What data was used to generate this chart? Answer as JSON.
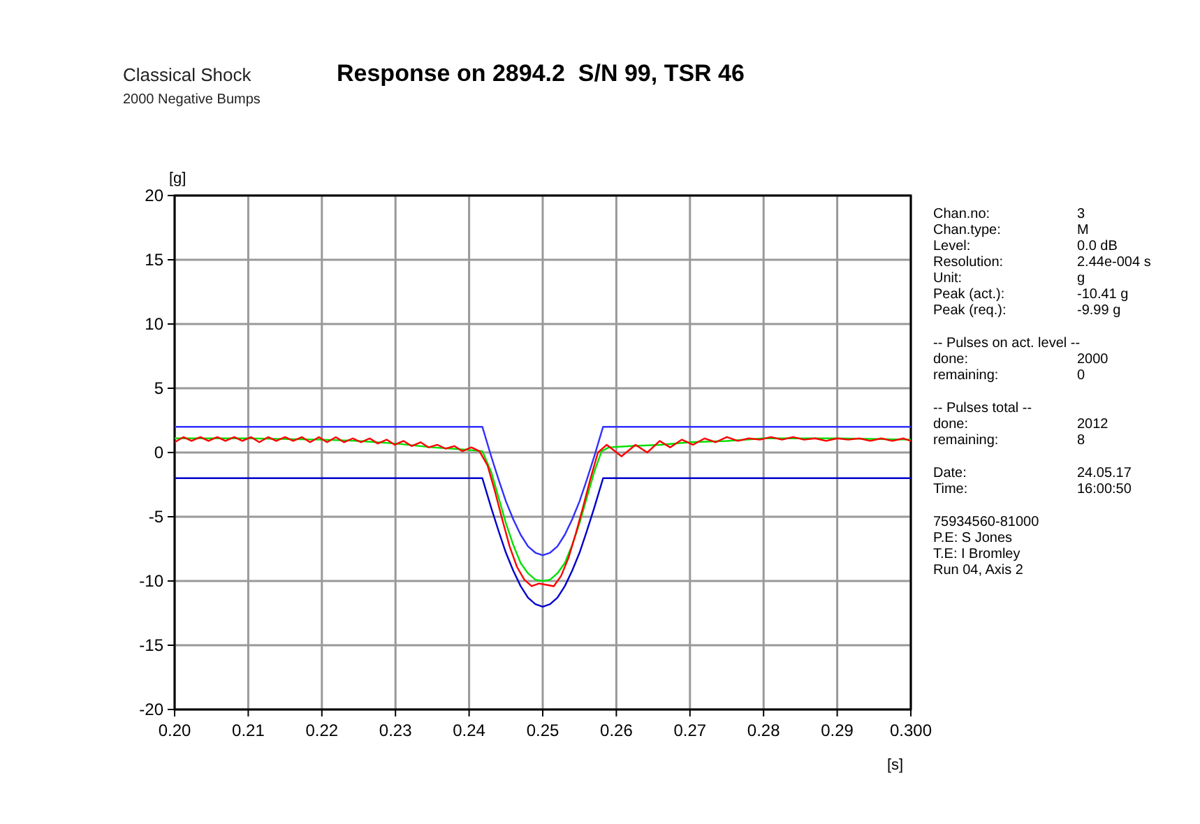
{
  "chart_data": {
    "type": "line",
    "title": "Response on 2894.2  S/N 99, TSR 46",
    "subtitle": "Classical Shock",
    "xlabel": "[s]",
    "ylabel": "[g]",
    "xlim": [
      0.2,
      0.3
    ],
    "ylim": [
      -20,
      20
    ],
    "xticks": [
      {
        "value": 0.2,
        "label": "0.20"
      },
      {
        "value": 0.21,
        "label": "0.21"
      },
      {
        "value": 0.22,
        "label": "0.22"
      },
      {
        "value": 0.23,
        "label": "0.23"
      },
      {
        "value": 0.24,
        "label": "0.24"
      },
      {
        "value": 0.25,
        "label": "0.25"
      },
      {
        "value": 0.26,
        "label": "0.26"
      },
      {
        "value": 0.27,
        "label": "0.27"
      },
      {
        "value": 0.28,
        "label": "0.28"
      },
      {
        "value": 0.29,
        "label": "0.29"
      },
      {
        "value": 0.3,
        "label": "0.300"
      }
    ],
    "yticks": [
      -20,
      -15,
      -10,
      -5,
      0,
      5,
      10,
      15,
      20
    ],
    "grid": true,
    "line_style": "solid",
    "series": [
      {
        "color": "#3030ff",
        "x": [
          0.2,
          0.2418,
          0.243,
          0.244,
          0.245,
          0.246,
          0.247,
          0.248,
          0.249,
          0.25,
          0.251,
          0.252,
          0.253,
          0.254,
          0.255,
          0.256,
          0.257,
          0.2582,
          0.3
        ],
        "values": [
          2,
          2,
          -0.3,
          -2.1,
          -3.8,
          -5.2,
          -6.4,
          -7.3,
          -7.8,
          -8,
          -7.8,
          -7.3,
          -6.4,
          -5.2,
          -3.8,
          -2.1,
          -0.3,
          2,
          2
        ]
      },
      {
        "color": "#0000cc",
        "x": [
          0.2,
          0.2418,
          0.243,
          0.244,
          0.245,
          0.246,
          0.247,
          0.248,
          0.249,
          0.25,
          0.251,
          0.252,
          0.253,
          0.254,
          0.255,
          0.256,
          0.257,
          0.2582,
          0.3
        ],
        "values": [
          -2,
          -2,
          -4.3,
          -6.1,
          -7.8,
          -9.2,
          -10.4,
          -11.3,
          -11.8,
          -12,
          -11.8,
          -11.3,
          -10.4,
          -9.2,
          -7.8,
          -6.1,
          -4.3,
          -2,
          -2
        ]
      },
      {
        "color": "#00e000",
        "x": [
          0.2,
          0.21,
          0.22,
          0.225,
          0.23,
          0.235,
          0.24,
          0.2418,
          0.243,
          0.244,
          0.245,
          0.246,
          0.247,
          0.248,
          0.249,
          0.25,
          0.251,
          0.252,
          0.253,
          0.254,
          0.255,
          0.256,
          0.257,
          0.258,
          0.259,
          0.262,
          0.266,
          0.27,
          0.275,
          0.28,
          0.29,
          0.3
        ],
        "values": [
          1.1,
          1.1,
          1.0,
          0.9,
          0.7,
          0.4,
          0.2,
          0.1,
          -1.5,
          -3.5,
          -5.5,
          -7.2,
          -8.6,
          -9.4,
          -9.9,
          -10,
          -9.9,
          -9.4,
          -8.6,
          -7.2,
          -5.5,
          -3.5,
          -1.5,
          0.1,
          0.4,
          0.5,
          0.6,
          0.8,
          0.9,
          1.1,
          1.1,
          1.0
        ]
      },
      {
        "color": "#ff0000",
        "x": [
          0.2,
          0.2012,
          0.2023,
          0.2035,
          0.2046,
          0.2058,
          0.2069,
          0.2081,
          0.2092,
          0.2104,
          0.2115,
          0.2127,
          0.2138,
          0.215,
          0.2161,
          0.2173,
          0.2184,
          0.2196,
          0.2207,
          0.2219,
          0.223,
          0.2242,
          0.2253,
          0.2265,
          0.2276,
          0.2288,
          0.2299,
          0.2311,
          0.2322,
          0.2334,
          0.2345,
          0.2357,
          0.2368,
          0.238,
          0.2391,
          0.2403,
          0.2414,
          0.2425,
          0.2435,
          0.2445,
          0.2455,
          0.2465,
          0.2475,
          0.2485,
          0.2495,
          0.2505,
          0.2515,
          0.2525,
          0.2535,
          0.2545,
          0.2555,
          0.2565,
          0.2575,
          0.2587,
          0.2607,
          0.2626,
          0.2642,
          0.2659,
          0.2673,
          0.2689,
          0.2704,
          0.272,
          0.2735,
          0.275,
          0.2765,
          0.278,
          0.2795,
          0.281,
          0.2825,
          0.284,
          0.2855,
          0.287,
          0.2885,
          0.29,
          0.2915,
          0.293,
          0.2945,
          0.296,
          0.2975,
          0.299,
          0.3
        ],
        "values": [
          0.8,
          1.2,
          0.9,
          1.2,
          0.9,
          1.2,
          0.9,
          1.2,
          0.9,
          1.2,
          0.8,
          1.2,
          0.9,
          1.2,
          0.9,
          1.2,
          0.8,
          1.2,
          0.8,
          1.2,
          0.8,
          1.1,
          0.8,
          1.1,
          0.7,
          1.0,
          0.6,
          0.9,
          0.5,
          0.8,
          0.4,
          0.6,
          0.3,
          0.5,
          0.1,
          0.4,
          0.1,
          -1.0,
          -3.0,
          -5.2,
          -7.3,
          -8.9,
          -9.9,
          -10.4,
          -10.2,
          -10.3,
          -10.41,
          -9.6,
          -8.2,
          -6.3,
          -4.2,
          -2.0,
          0.0,
          0.6,
          -0.3,
          0.6,
          0.0,
          0.9,
          0.4,
          1.0,
          0.6,
          1.1,
          0.8,
          1.2,
          0.9,
          1.1,
          1.0,
          1.2,
          1.0,
          1.2,
          1.0,
          1.1,
          0.9,
          1.1,
          1.0,
          1.1,
          0.9,
          1.1,
          0.9,
          1.1,
          0.9
        ]
      }
    ],
    "annotations": [
      "2000 Negative Bumps",
      "Chan.no:\t3\nChan.type:\tM\nLevel:\t0.0 dB\nResolution:\t2.44e-004 s\nUnit:\tg\nPeak (act.):\t-10.41 g\nPeak (req.):\t-9.99 g",
      "-- Pulses on act. level --\ndone:\t2000\nremaining:\t0",
      "-- Pulses total --\ndone:\t2012\nremaining:\t8",
      "Date:\t24.05.17\nTime:\t16:00:50",
      "75934560-81000\nP.E: S Jones\nT.E: I Bromley\nRun 04, Axis 2"
    ]
  }
}
